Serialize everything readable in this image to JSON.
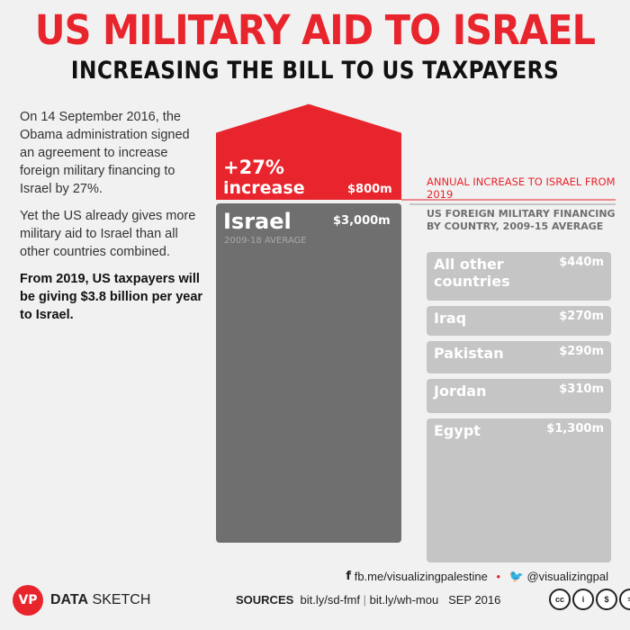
{
  "title": "US MILITARY AID TO ISRAEL",
  "subtitle": "INCREASING THE BILL TO US TAXPAYERS",
  "intro": {
    "p1": "On 14 September 2016, the Obama administration signed an agreement to increase foreign military financing to Israel by 27%.",
    "p2": "Yet the US already gives more military aid to Israel than all other countries combined.",
    "p3": "From 2019, US taxpayers will be giving $3.8 billion per year to Israel."
  },
  "colors": {
    "accent": "#e8242c",
    "israel_bar": "#6f6f70",
    "country_bar": "#c5c5c6",
    "background": "#f1f1f1"
  },
  "chart_data": {
    "type": "bar",
    "israel": {
      "name": "Israel",
      "subtitle": "2009-18 AVERAGE",
      "base_value": 3000,
      "base_label": "$3,000m",
      "increase_value": 800,
      "increase_label": "$800m",
      "increase_pct": "+27%",
      "increase_word": "increase"
    },
    "annual_increase_label": "ANNUAL INCREASE TO ISRAEL FROM 2019",
    "countries_label": "US FOREIGN MILITARY FINANCING BY COUNTRY, 2009-15 AVERAGE",
    "countries": [
      {
        "name": "All other countries",
        "value": 440,
        "label": "$440m"
      },
      {
        "name": "Iraq",
        "value": 270,
        "label": "$270m"
      },
      {
        "name": "Pakistan",
        "value": 290,
        "label": "$290m"
      },
      {
        "name": "Jordan",
        "value": 310,
        "label": "$310m"
      },
      {
        "name": "Egypt",
        "value": 1300,
        "label": "$1,300m"
      }
    ]
  },
  "footer": {
    "facebook": "fb.me/visualizingpalestine",
    "twitter": "@visualizingpal",
    "logo": "VP",
    "brand_bold": "DATA",
    "brand_rest": "SKETCH",
    "sources_label": "SOURCES",
    "source1": "bit.ly/sd-fmf",
    "source2": "bit.ly/wh-mou",
    "date": "SEP 2016",
    "license_icons": [
      "cc-icon",
      "by-icon",
      "nc-icon",
      "nd-icon"
    ]
  }
}
